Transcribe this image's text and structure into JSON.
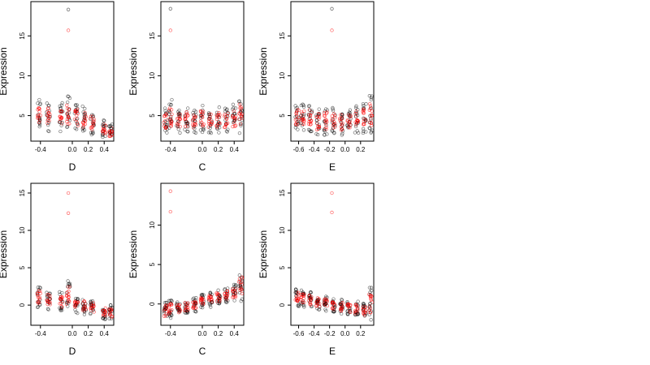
{
  "colors": {
    "black_points": "#000000",
    "red_points": "#ff0000",
    "frame": "#000000"
  },
  "chart_data": [
    {
      "type": "scatter",
      "id": "top-d",
      "xlabel": "D",
      "ylabel": "Expression",
      "xlim": [
        -0.52,
        0.52
      ],
      "ylim": [
        1.8,
        19.3
      ],
      "xticks": [
        -0.4,
        0.0,
        0.2,
        0.4
      ],
      "yticks": [
        5,
        10,
        15
      ],
      "xtick_labels": [
        "-0.4",
        "0.0",
        "0.2",
        "0.4"
      ],
      "ytick_labels": [
        "5",
        "10",
        "15"
      ],
      "clusters": [
        {
          "x": -0.42,
          "y_range": [
            3.2,
            7.0
          ]
        },
        {
          "x": -0.3,
          "y_range": [
            3.0,
            6.8
          ]
        },
        {
          "x": -0.14,
          "y_range": [
            3.0,
            6.6
          ]
        },
        {
          "x": -0.05,
          "y_range": [
            3.0,
            7.5
          ]
        },
        {
          "x": 0.05,
          "y_range": [
            3.0,
            6.5
          ]
        },
        {
          "x": 0.15,
          "y_range": [
            2.8,
            6.2
          ]
        },
        {
          "x": 0.25,
          "y_range": [
            2.6,
            5.5
          ]
        },
        {
          "x": 0.4,
          "y_range": [
            2.2,
            4.5
          ]
        },
        {
          "x": 0.48,
          "y_range": [
            2.0,
            4.0
          ]
        }
      ],
      "outliers": [
        {
          "x": -0.05,
          "y": 18.3,
          "series": "black"
        },
        {
          "x": -0.05,
          "y": 15.7,
          "series": "red"
        }
      ]
    },
    {
      "type": "scatter",
      "id": "top-c",
      "xlabel": "C",
      "ylabel": "Expression",
      "xlim": [
        -0.52,
        0.52
      ],
      "ylim": [
        1.8,
        19.3
      ],
      "xticks": [
        -0.4,
        0.0,
        0.2,
        0.4
      ],
      "yticks": [
        5,
        10,
        15
      ],
      "xtick_labels": [
        "-0.4",
        "0.0",
        "0.2",
        "0.4"
      ],
      "ytick_labels": [
        "5",
        "10",
        "15"
      ],
      "clusters": [
        {
          "x": -0.46,
          "y_range": [
            2.8,
            6.0
          ]
        },
        {
          "x": -0.4,
          "y_range": [
            2.8,
            7.0
          ]
        },
        {
          "x": -0.3,
          "y_range": [
            2.8,
            5.8
          ]
        },
        {
          "x": -0.2,
          "y_range": [
            2.8,
            6.2
          ]
        },
        {
          "x": -0.1,
          "y_range": [
            2.8,
            6.0
          ]
        },
        {
          "x": 0.0,
          "y_range": [
            2.8,
            6.5
          ]
        },
        {
          "x": 0.1,
          "y_range": [
            2.8,
            6.0
          ]
        },
        {
          "x": 0.2,
          "y_range": [
            2.8,
            6.2
          ]
        },
        {
          "x": 0.3,
          "y_range": [
            2.8,
            6.0
          ]
        },
        {
          "x": 0.4,
          "y_range": [
            2.8,
            6.5
          ]
        },
        {
          "x": 0.48,
          "y_range": [
            2.8,
            7.5
          ]
        }
      ],
      "outliers": [
        {
          "x": -0.4,
          "y": 18.4,
          "series": "black"
        },
        {
          "x": -0.4,
          "y": 15.7,
          "series": "red"
        }
      ]
    },
    {
      "type": "scatter",
      "id": "top-e",
      "xlabel": "E",
      "ylabel": "Expression",
      "xlim": [
        -0.7,
        0.37
      ],
      "ylim": [
        1.8,
        19.3
      ],
      "xticks": [
        -0.6,
        -0.4,
        -0.2,
        0.0,
        0.2
      ],
      "yticks": [
        5,
        10,
        15
      ],
      "xtick_labels": [
        "-0.6",
        "-0.4",
        "-0.2",
        "0.0",
        "0.2"
      ],
      "ytick_labels": [
        "5",
        "10",
        "15"
      ],
      "clusters": [
        {
          "x": -0.62,
          "y_range": [
            3.0,
            6.5
          ]
        },
        {
          "x": -0.55,
          "y_range": [
            3.0,
            6.8
          ]
        },
        {
          "x": -0.45,
          "y_range": [
            3.0,
            6.5
          ]
        },
        {
          "x": -0.35,
          "y_range": [
            2.5,
            6.0
          ]
        },
        {
          "x": -0.25,
          "y_range": [
            2.5,
            6.2
          ]
        },
        {
          "x": -0.15,
          "y_range": [
            2.5,
            6.0
          ]
        },
        {
          "x": -0.05,
          "y_range": [
            2.5,
            6.0
          ]
        },
        {
          "x": 0.05,
          "y_range": [
            2.8,
            6.0
          ]
        },
        {
          "x": 0.15,
          "y_range": [
            2.8,
            6.5
          ]
        },
        {
          "x": 0.25,
          "y_range": [
            2.8,
            7.0
          ]
        },
        {
          "x": 0.33,
          "y_range": [
            2.8,
            7.5
          ]
        }
      ],
      "outliers": [
        {
          "x": -0.17,
          "y": 18.4,
          "series": "black"
        },
        {
          "x": -0.17,
          "y": 15.7,
          "series": "red"
        }
      ]
    },
    {
      "type": "scatter",
      "id": "bottom-d",
      "xlabel": "D",
      "ylabel": "Expression",
      "xlim": [
        -0.52,
        0.52
      ],
      "ylim": [
        -2.7,
        16.3
      ],
      "xticks": [
        -0.4,
        0.0,
        0.2,
        0.4
      ],
      "yticks": [
        0,
        5,
        10,
        15
      ],
      "xtick_labels": [
        "-0.4",
        "0.0",
        "0.2",
        "0.4"
      ],
      "ytick_labels": [
        "0",
        "5",
        "10",
        "15"
      ],
      "clusters": [
        {
          "x": -0.42,
          "y_range": [
            -0.3,
            2.5
          ]
        },
        {
          "x": -0.3,
          "y_range": [
            -0.6,
            2.0
          ]
        },
        {
          "x": -0.14,
          "y_range": [
            -0.8,
            1.8
          ]
        },
        {
          "x": -0.05,
          "y_range": [
            -1.0,
            3.5
          ]
        },
        {
          "x": 0.05,
          "y_range": [
            -1.2,
            1.2
          ]
        },
        {
          "x": 0.15,
          "y_range": [
            -1.3,
            1.0
          ]
        },
        {
          "x": 0.25,
          "y_range": [
            -1.5,
            0.8
          ]
        },
        {
          "x": 0.4,
          "y_range": [
            -2.0,
            0.2
          ]
        },
        {
          "x": 0.48,
          "y_range": [
            -2.0,
            0.0
          ]
        }
      ],
      "outliers": [
        {
          "x": -0.05,
          "y": 15.0,
          "series": "red"
        },
        {
          "x": -0.05,
          "y": 12.3,
          "series": "red"
        }
      ]
    },
    {
      "type": "scatter",
      "id": "bottom-c",
      "xlabel": "C",
      "ylabel": "Expression",
      "xlim": [
        -0.52,
        0.52
      ],
      "ylim": [
        -2.7,
        15.3
      ],
      "xticks": [
        -0.4,
        0.0,
        0.2,
        0.4
      ],
      "yticks": [
        0,
        5,
        10
      ],
      "xtick_labels": [
        "-0.4",
        "0.0",
        "0.2",
        "0.4"
      ],
      "ytick_labels": [
        "0",
        "5",
        "10"
      ],
      "clusters": [
        {
          "x": -0.46,
          "y_range": [
            -2.0,
            0.3
          ]
        },
        {
          "x": -0.4,
          "y_range": [
            -1.8,
            0.5
          ]
        },
        {
          "x": -0.3,
          "y_range": [
            -1.5,
            0.3
          ]
        },
        {
          "x": -0.2,
          "y_range": [
            -1.2,
            0.5
          ]
        },
        {
          "x": -0.1,
          "y_range": [
            -1.0,
            0.8
          ]
        },
        {
          "x": 0.0,
          "y_range": [
            -0.6,
            1.2
          ]
        },
        {
          "x": 0.1,
          "y_range": [
            -0.4,
            1.5
          ]
        },
        {
          "x": 0.2,
          "y_range": [
            -0.2,
            2.0
          ]
        },
        {
          "x": 0.3,
          "y_range": [
            0.0,
            2.2
          ]
        },
        {
          "x": 0.4,
          "y_range": [
            0.2,
            2.5
          ]
        },
        {
          "x": 0.48,
          "y_range": [
            0.3,
            4.3
          ]
        }
      ],
      "outliers": [
        {
          "x": -0.4,
          "y": 14.3,
          "series": "red"
        },
        {
          "x": -0.4,
          "y": 11.7,
          "series": "red"
        }
      ]
    },
    {
      "type": "scatter",
      "id": "bottom-e",
      "xlabel": "E",
      "ylabel": "Expression",
      "xlim": [
        -0.7,
        0.37
      ],
      "ylim": [
        -2.7,
        16.3
      ],
      "xticks": [
        -0.6,
        -0.4,
        -0.2,
        0.0,
        0.2
      ],
      "yticks": [
        0,
        5,
        10,
        15
      ],
      "xtick_labels": [
        "-0.6",
        "-0.4",
        "-0.2",
        "0.0",
        "0.2"
      ],
      "ytick_labels": [
        "0",
        "5",
        "10",
        "15"
      ],
      "clusters": [
        {
          "x": -0.62,
          "y_range": [
            -0.2,
            2.3
          ]
        },
        {
          "x": -0.55,
          "y_range": [
            -0.3,
            2.0
          ]
        },
        {
          "x": -0.45,
          "y_range": [
            -0.5,
            1.8
          ]
        },
        {
          "x": -0.35,
          "y_range": [
            -0.6,
            1.5
          ]
        },
        {
          "x": -0.25,
          "y_range": [
            -0.8,
            1.2
          ]
        },
        {
          "x": -0.15,
          "y_range": [
            -1.0,
            1.0
          ]
        },
        {
          "x": -0.05,
          "y_range": [
            -1.2,
            0.8
          ]
        },
        {
          "x": 0.05,
          "y_range": [
            -1.4,
            0.6
          ]
        },
        {
          "x": 0.15,
          "y_range": [
            -1.6,
            0.5
          ]
        },
        {
          "x": 0.25,
          "y_range": [
            -1.8,
            0.3
          ]
        },
        {
          "x": 0.33,
          "y_range": [
            -2.0,
            2.5
          ]
        }
      ],
      "outliers": [
        {
          "x": -0.17,
          "y": 15.0,
          "series": "red"
        },
        {
          "x": -0.17,
          "y": 12.4,
          "series": "red"
        }
      ]
    }
  ]
}
